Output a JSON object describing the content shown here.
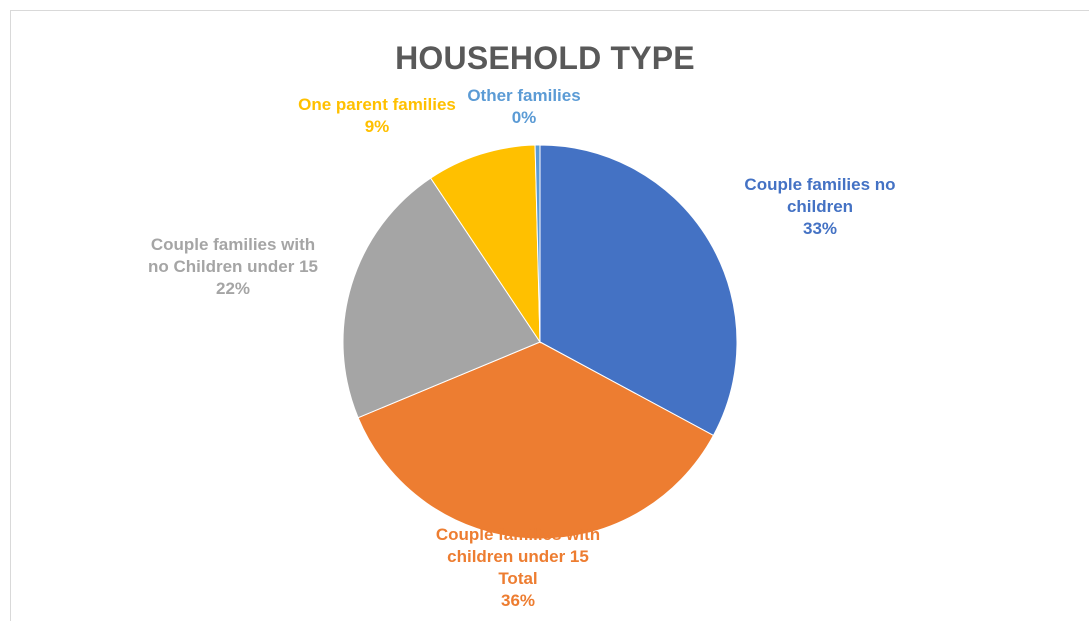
{
  "chart_data": {
    "type": "pie",
    "title": "HOUSEHOLD TYPE",
    "slices": [
      {
        "lines": [
          "Couple families no",
          "children"
        ],
        "percent_label": "33%",
        "value": 33,
        "color": "#4472C4",
        "label_color": "#4472C4"
      },
      {
        "lines": [
          "Couple families with",
          "children under 15",
          "Total"
        ],
        "percent_label": "36%",
        "value": 36,
        "color": "#ED7D31",
        "label_color": "#ED7D31"
      },
      {
        "lines": [
          "Couple families with",
          "no Children under 15"
        ],
        "percent_label": "22%",
        "value": 22,
        "color": "#A5A5A5",
        "label_color": "#A5A5A5"
      },
      {
        "lines": [
          "One parent families"
        ],
        "percent_label": "9%",
        "value": 9,
        "color": "#FFC000",
        "label_color": "#FFC000"
      },
      {
        "lines": [
          "Other families"
        ],
        "percent_label": "0%",
        "value": 0.4,
        "color": "#5B9BD5",
        "label_color": "#5B9BD5"
      }
    ]
  }
}
